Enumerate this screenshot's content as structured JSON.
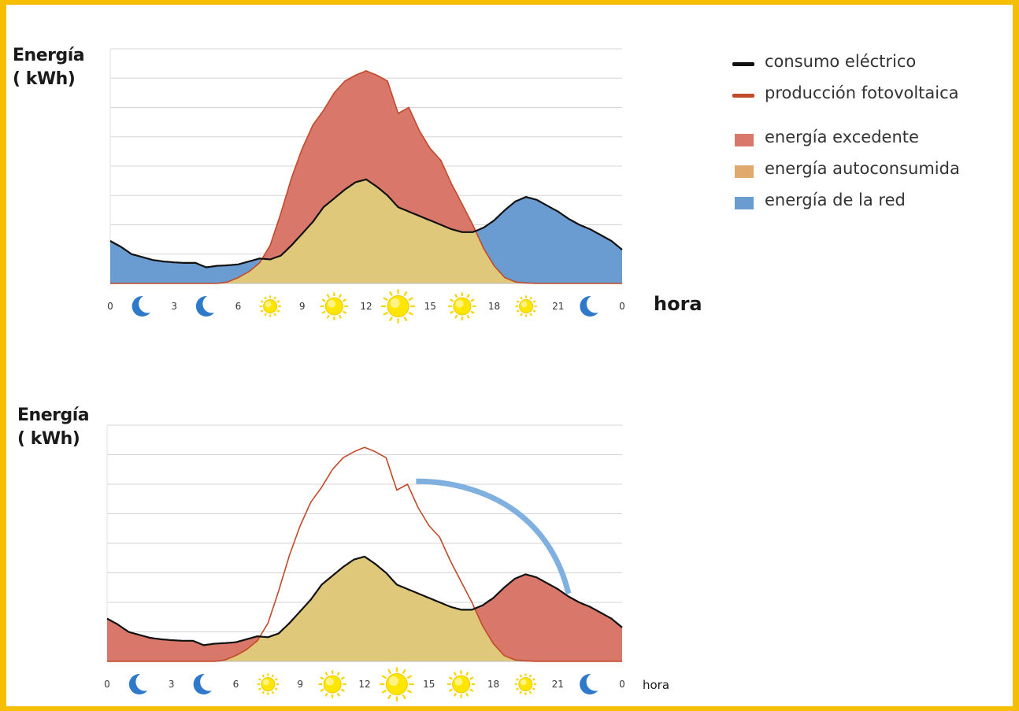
{
  "colors": {
    "border": "#f6be00",
    "consumo": "#111111",
    "produccion": "#c04a2a",
    "excedente": "#d9776b",
    "autoconsumida": "#dfc879",
    "red": "#6a9bd1",
    "arrow": "#7fb0e0"
  },
  "legend": {
    "items": [
      {
        "kind": "line",
        "label": "consumo eléctrico",
        "color": "#111111"
      },
      {
        "kind": "line",
        "label": "producción fotovoltaica",
        "color": "#c04a2a"
      },
      {
        "kind": "swatch",
        "label": "energía excedente",
        "color": "#d9776b"
      },
      {
        "kind": "swatch",
        "label": "energía autoconsumida",
        "color": "#e0aa6e"
      },
      {
        "kind": "swatch",
        "label": "energía de la red",
        "color": "#6a9bd1"
      }
    ]
  },
  "chart_data": [
    {
      "type": "area",
      "ylabel_line1": "Energía",
      "ylabel_line2": "( kWh)",
      "xlabel": "hora",
      "x_ticks": [
        "0",
        "3",
        "6",
        "9",
        "12",
        "15",
        "18",
        "21",
        "0"
      ],
      "x_icons": [
        "moon-icon",
        "moon-icon",
        "sun-icon",
        "sun-icon",
        "sun-icon",
        "sun-icon",
        "sun-icon",
        "moon-icon"
      ],
      "xlim": [
        0,
        24
      ],
      "ylim": [
        0,
        8
      ],
      "grid": true,
      "series": [
        {
          "name": "consumo eléctrico",
          "x": [
            0,
            0.5,
            1,
            1.5,
            2,
            2.5,
            3,
            3.5,
            4,
            4.5,
            5,
            5.5,
            6,
            6.5,
            7,
            7.5,
            8,
            8.5,
            9,
            9.5,
            10,
            10.5,
            11,
            11.5,
            12,
            12.5,
            13,
            13.5,
            14,
            14.5,
            15,
            15.5,
            16,
            16.5,
            17,
            17.5,
            18,
            18.5,
            19,
            19.5,
            20,
            20.5,
            21,
            21.5,
            22,
            22.5,
            23,
            23.5,
            24
          ],
          "values": [
            1.45,
            1.25,
            1.0,
            0.9,
            0.8,
            0.75,
            0.72,
            0.7,
            0.7,
            0.55,
            0.6,
            0.62,
            0.65,
            0.75,
            0.85,
            0.82,
            0.95,
            1.3,
            1.7,
            2.1,
            2.6,
            2.9,
            3.2,
            3.45,
            3.55,
            3.3,
            3.0,
            2.6,
            2.45,
            2.3,
            2.15,
            2.0,
            1.85,
            1.75,
            1.75,
            1.9,
            2.15,
            2.5,
            2.8,
            2.95,
            2.85,
            2.65,
            2.45,
            2.2,
            2.0,
            1.85,
            1.65,
            1.45,
            1.15
          ]
        },
        {
          "name": "producción fotovoltaica",
          "x": [
            0,
            5,
            5.5,
            6,
            6.5,
            7,
            7.5,
            8,
            8.5,
            9,
            9.5,
            10,
            10.5,
            11,
            11.5,
            12,
            12.5,
            13,
            13.5,
            14,
            14.5,
            15,
            15.5,
            16,
            16.5,
            17,
            17.5,
            18,
            18.5,
            19,
            19.5,
            20,
            24
          ],
          "values": [
            0,
            0,
            0.05,
            0.2,
            0.4,
            0.7,
            1.3,
            2.4,
            3.6,
            4.6,
            5.4,
            5.9,
            6.5,
            6.9,
            7.1,
            7.25,
            7.1,
            6.9,
            5.8,
            6.0,
            5.2,
            4.6,
            4.2,
            3.4,
            2.7,
            2.0,
            1.2,
            0.6,
            0.2,
            0.05,
            0.02,
            0,
            0
          ]
        }
      ]
    },
    {
      "type": "area",
      "ylabel_line1": "Energía",
      "ylabel_line2": "( kWh)",
      "xlabel": "hora",
      "x_ticks": [
        "0",
        "3",
        "6",
        "9",
        "12",
        "15",
        "18",
        "21",
        "0"
      ],
      "x_icons": [
        "moon-icon",
        "moon-icon",
        "sun-icon",
        "sun-icon",
        "sun-icon",
        "sun-icon",
        "sun-icon",
        "moon-icon"
      ],
      "xlim": [
        0,
        24
      ],
      "ylim": [
        0,
        8
      ],
      "grid": true,
      "series": [
        {
          "name": "consumo eléctrico",
          "x": [
            0,
            0.5,
            1,
            1.5,
            2,
            2.5,
            3,
            3.5,
            4,
            4.5,
            5,
            5.5,
            6,
            6.5,
            7,
            7.5,
            8,
            8.5,
            9,
            9.5,
            10,
            10.5,
            11,
            11.5,
            12,
            12.5,
            13,
            13.5,
            14,
            14.5,
            15,
            15.5,
            16,
            16.5,
            17,
            17.5,
            18,
            18.5,
            19,
            19.5,
            20,
            20.5,
            21,
            21.5,
            22,
            22.5,
            23,
            23.5,
            24
          ],
          "values": [
            1.45,
            1.25,
            1.0,
            0.9,
            0.8,
            0.75,
            0.72,
            0.7,
            0.7,
            0.55,
            0.6,
            0.62,
            0.65,
            0.75,
            0.85,
            0.82,
            0.95,
            1.3,
            1.7,
            2.1,
            2.6,
            2.9,
            3.2,
            3.45,
            3.55,
            3.3,
            3.0,
            2.6,
            2.45,
            2.3,
            2.15,
            2.0,
            1.85,
            1.75,
            1.75,
            1.9,
            2.15,
            2.5,
            2.8,
            2.95,
            2.85,
            2.65,
            2.45,
            2.2,
            2.0,
            1.85,
            1.65,
            1.45,
            1.15
          ]
        },
        {
          "name": "producción fotovoltaica",
          "x": [
            0,
            5,
            5.5,
            6,
            6.5,
            7,
            7.5,
            8,
            8.5,
            9,
            9.5,
            10,
            10.5,
            11,
            11.5,
            12,
            12.5,
            13,
            13.5,
            14,
            14.5,
            15,
            15.5,
            16,
            16.5,
            17,
            17.5,
            18,
            18.5,
            19,
            19.5,
            20,
            24
          ],
          "values": [
            0,
            0,
            0.05,
            0.2,
            0.4,
            0.7,
            1.3,
            2.4,
            3.6,
            4.6,
            5.4,
            5.9,
            6.5,
            6.9,
            7.1,
            7.25,
            7.1,
            6.9,
            5.8,
            6.0,
            5.2,
            4.6,
            4.2,
            3.4,
            2.7,
            2.0,
            1.2,
            0.6,
            0.2,
            0.05,
            0.02,
            0,
            0
          ]
        }
      ]
    }
  ]
}
